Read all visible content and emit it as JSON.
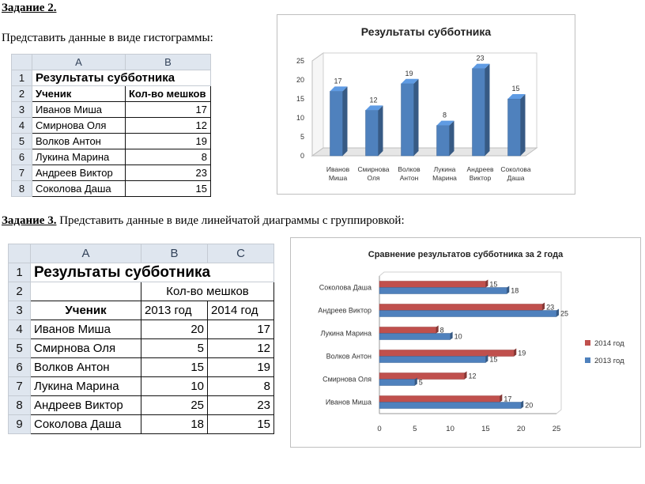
{
  "task2": {
    "title": "Задание 2.",
    "text": "Представить данные в виде гистограммы:"
  },
  "task3": {
    "title": "Задание 3.",
    "text": " Представить данные в виде линейчатой диаграммы с группировкой:"
  },
  "table1": {
    "col_headers": [
      "A",
      "B"
    ],
    "row_numbers": [
      "1",
      "2",
      "3",
      "4",
      "5",
      "6",
      "7",
      "8"
    ],
    "title": "Результаты субботника",
    "header": [
      "Ученик",
      "Кол-во мешков"
    ],
    "rows": [
      [
        "Иванов Миша",
        "17"
      ],
      [
        "Смирнова Оля",
        "12"
      ],
      [
        "Волков Антон",
        "19"
      ],
      [
        "Лукина Марина",
        "8"
      ],
      [
        "Андреев Виктор",
        "23"
      ],
      [
        "Соколова Даша",
        "15"
      ]
    ]
  },
  "table2": {
    "col_headers": [
      "A",
      "B",
      "C"
    ],
    "row_numbers": [
      "1",
      "2",
      "3",
      "4",
      "5",
      "6",
      "7",
      "8",
      "9"
    ],
    "title": "Результаты субботника",
    "group_header": "Кол-во мешков",
    "header": [
      "Ученик",
      "2013 год",
      "2014 год"
    ],
    "rows": [
      [
        "Иванов Миша",
        "20",
        "17"
      ],
      [
        "Смирнова Оля",
        "5",
        "12"
      ],
      [
        "Волков Антон",
        "15",
        "19"
      ],
      [
        "Лукина Марина",
        "10",
        "8"
      ],
      [
        "Андреев Виктор",
        "25",
        "23"
      ],
      [
        "Соколова Даша",
        "18",
        "15"
      ]
    ]
  },
  "chart_data": [
    {
      "type": "bar",
      "title": "Результаты субботника",
      "categories": [
        "Иванов Миша",
        "Смирнова Оля",
        "Волков Антон",
        "Лукина Марина",
        "Андреев Виктор",
        "Соколова Даша"
      ],
      "category_lines": [
        [
          "Иванов",
          "Миша"
        ],
        [
          "Смирнова",
          "Оля"
        ],
        [
          "Волков",
          "Антон"
        ],
        [
          "Лукина",
          "Марина"
        ],
        [
          "Андреев",
          "Виктор"
        ],
        [
          "Соколова",
          "Даша"
        ]
      ],
      "values": [
        17,
        12,
        19,
        8,
        23,
        15
      ],
      "ylim": [
        0,
        25
      ],
      "yticks": [
        0,
        5,
        10,
        15,
        20,
        25
      ],
      "grid": false,
      "style": "3d-column",
      "color": "#4f81bd"
    },
    {
      "type": "bar",
      "orientation": "horizontal",
      "title": "Сравнение результатов субботника за 2 года",
      "categories": [
        "Иванов Миша",
        "Смирнова Оля",
        "Волков Антон",
        "Лукина Марина",
        "Андреев Виктор",
        "Соколова Даша"
      ],
      "series": [
        {
          "name": "2014 год",
          "values": [
            17,
            12,
            19,
            8,
            23,
            15
          ],
          "color": "#c0504d"
        },
        {
          "name": "2013 год",
          "values": [
            20,
            5,
            15,
            10,
            25,
            18
          ],
          "color": "#4f81bd"
        }
      ],
      "xlim": [
        0,
        25
      ],
      "xticks": [
        0,
        5,
        10,
        15,
        20,
        25
      ],
      "legend": "right",
      "grid": false
    }
  ]
}
